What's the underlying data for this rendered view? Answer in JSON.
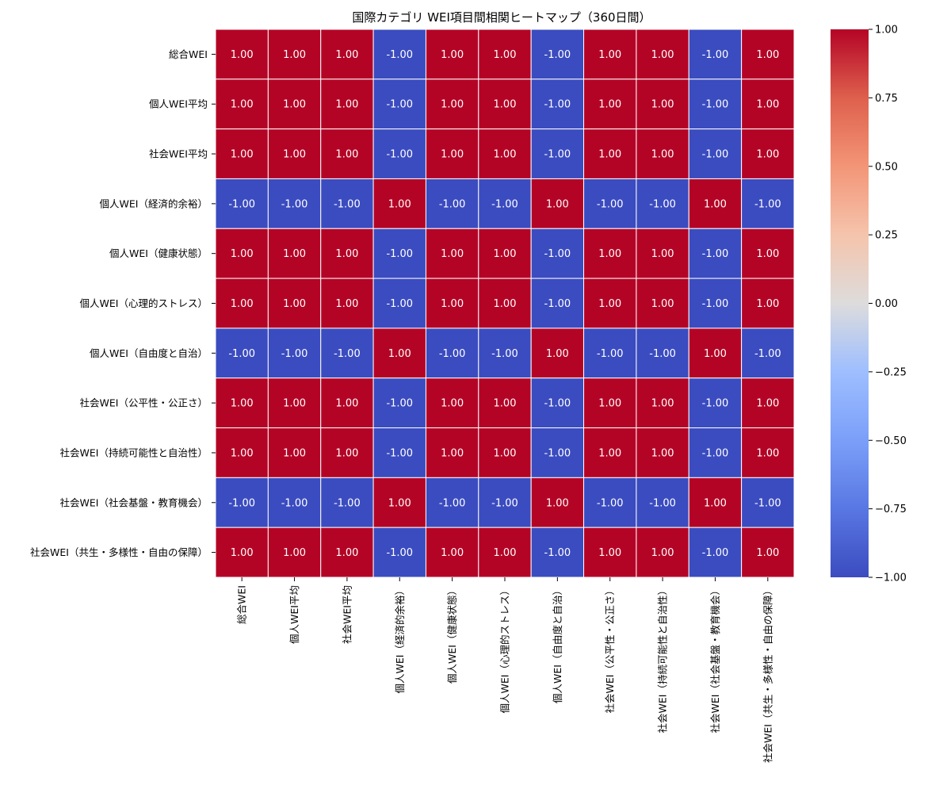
{
  "chart_data": {
    "type": "heatmap",
    "title": "国際カテゴリ WEI項目間相関ヒートマップ（360日間）",
    "xlabel": "",
    "ylabel": "",
    "labels": [
      "総合WEI",
      "個人WEI平均",
      "社会WEI平均",
      "個人WEI（経済的余裕）",
      "個人WEI（健康状態）",
      "個人WEI（心理的ストレス）",
      "個人WEI（自由度と自治）",
      "社会WEI（公平性・公正さ）",
      "社会WEI（持続可能性と自治性）",
      "社会WEI（社会基盤・教育機会）",
      "社会WEI（共生・多様性・自由の保障）"
    ],
    "matrix": [
      [
        1,
        1,
        1,
        -1,
        1,
        1,
        -1,
        1,
        1,
        -1,
        1
      ],
      [
        1,
        1,
        1,
        -1,
        1,
        1,
        -1,
        1,
        1,
        -1,
        1
      ],
      [
        1,
        1,
        1,
        -1,
        1,
        1,
        -1,
        1,
        1,
        -1,
        1
      ],
      [
        -1,
        -1,
        -1,
        1,
        -1,
        -1,
        1,
        -1,
        -1,
        1,
        -1
      ],
      [
        1,
        1,
        1,
        -1,
        1,
        1,
        -1,
        1,
        1,
        -1,
        1
      ],
      [
        1,
        1,
        1,
        -1,
        1,
        1,
        -1,
        1,
        1,
        -1,
        1
      ],
      [
        -1,
        -1,
        -1,
        1,
        -1,
        -1,
        1,
        -1,
        -1,
        1,
        -1
      ],
      [
        1,
        1,
        1,
        -1,
        1,
        1,
        -1,
        1,
        1,
        -1,
        1
      ],
      [
        1,
        1,
        1,
        -1,
        1,
        1,
        -1,
        1,
        1,
        -1,
        1
      ],
      [
        -1,
        -1,
        -1,
        1,
        -1,
        -1,
        1,
        -1,
        -1,
        1,
        -1
      ],
      [
        1,
        1,
        1,
        -1,
        1,
        1,
        -1,
        1,
        1,
        -1,
        1
      ]
    ],
    "value_format": "0.00",
    "value_range": [
      -1,
      1
    ],
    "colormap": "coolwarm",
    "colors": {
      "low": "#3b4cc0",
      "mid": "#dddcdc",
      "high": "#b40426"
    },
    "colorbar": {
      "ticks": [
        1.0,
        0.75,
        0.5,
        0.25,
        0.0,
        -0.25,
        -0.5,
        -0.75,
        -1.0
      ],
      "tick_labels": [
        "1.00",
        "0.75",
        "0.50",
        "0.25",
        "0.00",
        "−0.25",
        "−0.50",
        "−0.75",
        "−1.00"
      ]
    }
  }
}
